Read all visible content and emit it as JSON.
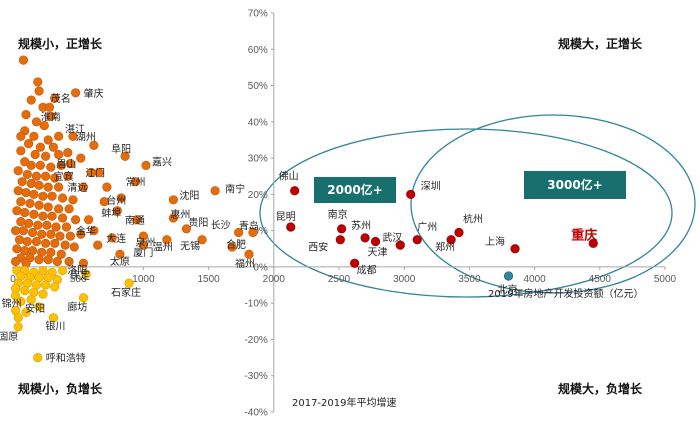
{
  "chart_data": {
    "type": "scatter",
    "xlabel": "2019年房地产开发投资额（亿元）",
    "ylabel": "2017-2019年平均增速",
    "xlim": [
      0,
      5000
    ],
    "ylim": [
      -40,
      70
    ],
    "x_ticks": [
      "0",
      "500",
      "1000",
      "1500",
      "2000",
      "2500",
      "3000",
      "3500",
      "4000",
      "4500",
      "5000"
    ],
    "y_ticks": [
      "-40%",
      "-30%",
      "-20%",
      "-10%",
      "0%",
      "10%",
      "20%",
      "30%",
      "40%",
      "50%",
      "60%",
      "70%"
    ],
    "quadrants": {
      "top_left": "规模小，正增长",
      "top_right": "规模大，正增长",
      "bottom_left": "规模小，负增长",
      "bottom_right": "规模大，负增长"
    },
    "callouts": [
      "2000亿+",
      "3000亿+"
    ],
    "colors": {
      "positive_large": "#c00000",
      "positive_small": "#e46c0a",
      "negative_small": "#ffc000",
      "negative_large": "#31859c",
      "ellipse": "#31859c",
      "callout_box": "#17706e",
      "highlight_label": "#c00000"
    },
    "labeled_points": [
      {
        "name": "重庆",
        "x": 4450,
        "y": 6.5,
        "group": "large_pos",
        "highlight": true
      },
      {
        "name": "上海",
        "x": 3850,
        "y": 5,
        "group": "large_pos"
      },
      {
        "name": "北京",
        "x": 3800,
        "y": -2.5,
        "group": "large_neg"
      },
      {
        "name": "杭州",
        "x": 3420,
        "y": 9.5,
        "group": "large_pos"
      },
      {
        "name": "郑州",
        "x": 3360,
        "y": 7.5,
        "group": "large_pos"
      },
      {
        "name": "广州",
        "x": 3100,
        "y": 7.5,
        "group": "large_pos"
      },
      {
        "name": "深圳",
        "x": 3050,
        "y": 20,
        "group": "large_pos"
      },
      {
        "name": "武汉",
        "x": 2970,
        "y": 6,
        "group": "large_pos"
      },
      {
        "name": "天津",
        "x": 2780,
        "y": 7,
        "group": "large_pos"
      },
      {
        "name": "苏州",
        "x": 2700,
        "y": 8,
        "group": "large_pos"
      },
      {
        "name": "南京",
        "x": 2520,
        "y": 10.5,
        "group": "large_pos"
      },
      {
        "name": "西安",
        "x": 2510,
        "y": 7.5,
        "group": "large_pos"
      },
      {
        "name": "成都",
        "x": 2620,
        "y": 1,
        "group": "large_pos"
      },
      {
        "name": "昆明",
        "x": 2130,
        "y": 11,
        "group": "large_pos"
      },
      {
        "name": "佛山",
        "x": 2160,
        "y": 21,
        "group": "large_pos"
      },
      {
        "name": "南宁",
        "x": 1550,
        "y": 21,
        "group": "small_pos"
      },
      {
        "name": "青岛",
        "x": 1840,
        "y": 9.5,
        "group": "small_pos"
      },
      {
        "name": "长沙",
        "x": 1730,
        "y": 9.5,
        "group": "small_pos"
      },
      {
        "name": "福州",
        "x": 1810,
        "y": 3.5,
        "group": "small_pos"
      },
      {
        "name": "合肥",
        "x": 1680,
        "y": 5.5,
        "group": "small_pos"
      },
      {
        "name": "无锡",
        "x": 1450,
        "y": 7.5,
        "group": "small_pos"
      },
      {
        "name": "贵阳",
        "x": 1330,
        "y": 10.5,
        "group": "small_pos"
      },
      {
        "name": "沈阳",
        "x": 1230,
        "y": 18.5,
        "group": "small_pos"
      },
      {
        "name": "惠州",
        "x": 1230,
        "y": 13.5,
        "group": "small_pos"
      },
      {
        "name": "温州",
        "x": 1180,
        "y": 7.5,
        "group": "small_pos"
      },
      {
        "name": "厦门",
        "x": 1000,
        "y": 6,
        "group": "small_pos"
      },
      {
        "name": "泉州",
        "x": 1000,
        "y": 8.5,
        "group": "small_pos"
      },
      {
        "name": "南通",
        "x": 950,
        "y": 13,
        "group": "small_pos"
      },
      {
        "name": "嘉兴",
        "x": 1020,
        "y": 28,
        "group": "small_pos"
      },
      {
        "name": "常州",
        "x": 940,
        "y": 23.5,
        "group": "small_pos"
      },
      {
        "name": "阜阳",
        "x": 860,
        "y": 30.5,
        "group": "small_pos"
      },
      {
        "name": "台州",
        "x": 830,
        "y": 19,
        "group": "small_pos"
      },
      {
        "name": "蚌埠",
        "x": 800,
        "y": 15.5,
        "group": "small_pos"
      },
      {
        "name": "太原",
        "x": 820,
        "y": 3.5,
        "group": "small_pos"
      },
      {
        "name": "大连",
        "x": 760,
        "y": 8,
        "group": "small_pos"
      },
      {
        "name": "金华",
        "x": 620,
        "y": 10,
        "group": "small_pos"
      },
      {
        "name": "江门",
        "x": 660,
        "y": 26,
        "group": "small_pos"
      },
      {
        "name": "湖州",
        "x": 620,
        "y": 33.5,
        "group": "small_pos"
      },
      {
        "name": "湛江",
        "x": 460,
        "y": 36,
        "group": "small_pos"
      },
      {
        "name": "眉山",
        "x": 440,
        "y": 28.5,
        "group": "small_pos"
      },
      {
        "name": "宜宾",
        "x": 420,
        "y": 25,
        "group": "small_pos"
      },
      {
        "name": "清远",
        "x": 540,
        "y": 22,
        "group": "small_pos"
      },
      {
        "name": "淮南",
        "x": 290,
        "y": 41.5,
        "group": "small_pos"
      },
      {
        "name": "茂名",
        "x": 320,
        "y": 46.5,
        "group": "small_pos"
      },
      {
        "name": "肇庆",
        "x": 480,
        "y": 48,
        "group": "small_pos"
      },
      {
        "name": "洛阳",
        "x": 540,
        "y": 1,
        "group": "small_pos"
      },
      {
        "name": "保定",
        "x": 560,
        "y": -2,
        "group": "small_neg"
      },
      {
        "name": "石家庄",
        "x": 890,
        "y": -4.5,
        "group": "small_neg"
      },
      {
        "name": "廊坊",
        "x": 540,
        "y": -8.5,
        "group": "small_neg"
      },
      {
        "name": "锦州",
        "x": 20,
        "y": -8,
        "group": "small_neg"
      },
      {
        "name": "安阳",
        "x": 200,
        "y": -11,
        "group": "small_neg"
      },
      {
        "name": "银川",
        "x": 310,
        "y": -14,
        "group": "small_neg"
      },
      {
        "name": "固原",
        "x": 40,
        "y": -16.5,
        "group": "small_neg"
      },
      {
        "name": "呼和浩特",
        "x": 190,
        "y": -25,
        "group": "small_neg"
      }
    ],
    "unlabeled_points": [
      {
        "x": 80,
        "y": 57,
        "group": "small_pos"
      },
      {
        "x": 190,
        "y": 51,
        "group": "small_pos"
      },
      {
        "x": 200,
        "y": 48.5,
        "group": "small_pos"
      },
      {
        "x": 140,
        "y": 46,
        "group": "small_pos"
      },
      {
        "x": 230,
        "y": 44,
        "group": "small_pos"
      },
      {
        "x": 280,
        "y": 44,
        "group": "small_pos"
      },
      {
        "x": 100,
        "y": 42,
        "group": "small_pos"
      },
      {
        "x": 180,
        "y": 40,
        "group": "small_pos"
      },
      {
        "x": 240,
        "y": 39,
        "group": "small_pos"
      },
      {
        "x": 90,
        "y": 37.5,
        "group": "small_pos"
      },
      {
        "x": 60,
        "y": 36,
        "group": "small_pos"
      },
      {
        "x": 160,
        "y": 36,
        "group": "small_pos"
      },
      {
        "x": 270,
        "y": 35,
        "group": "small_pos"
      },
      {
        "x": 350,
        "y": 36,
        "group": "small_pos"
      },
      {
        "x": 120,
        "y": 34,
        "group": "small_pos"
      },
      {
        "x": 210,
        "y": 33,
        "group": "small_pos"
      },
      {
        "x": 310,
        "y": 33,
        "group": "small_pos"
      },
      {
        "x": 60,
        "y": 32,
        "group": "small_pos"
      },
      {
        "x": 170,
        "y": 31,
        "group": "small_pos"
      },
      {
        "x": 250,
        "y": 30.5,
        "group": "small_pos"
      },
      {
        "x": 350,
        "y": 31,
        "group": "small_pos"
      },
      {
        "x": 420,
        "y": 31.5,
        "group": "small_pos"
      },
      {
        "x": 90,
        "y": 29,
        "group": "small_pos"
      },
      {
        "x": 140,
        "y": 28,
        "group": "small_pos"
      },
      {
        "x": 210,
        "y": 28,
        "group": "small_pos"
      },
      {
        "x": 290,
        "y": 27.5,
        "group": "small_pos"
      },
      {
        "x": 370,
        "y": 28,
        "group": "small_pos"
      },
      {
        "x": 520,
        "y": 30,
        "group": "small_pos"
      },
      {
        "x": 40,
        "y": 26.5,
        "group": "small_pos"
      },
      {
        "x": 110,
        "y": 25.5,
        "group": "small_pos"
      },
      {
        "x": 180,
        "y": 25,
        "group": "small_pos"
      },
      {
        "x": 250,
        "y": 25,
        "group": "small_pos"
      },
      {
        "x": 320,
        "y": 24.5,
        "group": "small_pos"
      },
      {
        "x": 600,
        "y": 26,
        "group": "small_pos"
      },
      {
        "x": 70,
        "y": 23.5,
        "group": "small_pos"
      },
      {
        "x": 140,
        "y": 23,
        "group": "small_pos"
      },
      {
        "x": 200,
        "y": 22.5,
        "group": "small_pos"
      },
      {
        "x": 270,
        "y": 22,
        "group": "small_pos"
      },
      {
        "x": 350,
        "y": 22,
        "group": "small_pos"
      },
      {
        "x": 720,
        "y": 22,
        "group": "small_pos"
      },
      {
        "x": 40,
        "y": 21,
        "group": "small_pos"
      },
      {
        "x": 100,
        "y": 20.5,
        "group": "small_pos"
      },
      {
        "x": 160,
        "y": 20,
        "group": "small_pos"
      },
      {
        "x": 230,
        "y": 19.5,
        "group": "small_pos"
      },
      {
        "x": 300,
        "y": 19.5,
        "group": "small_pos"
      },
      {
        "x": 380,
        "y": 19,
        "group": "small_pos"
      },
      {
        "x": 460,
        "y": 18.5,
        "group": "small_pos"
      },
      {
        "x": 700,
        "y": 18,
        "group": "small_pos"
      },
      {
        "x": 60,
        "y": 18,
        "group": "small_pos"
      },
      {
        "x": 130,
        "y": 17.5,
        "group": "small_pos"
      },
      {
        "x": 200,
        "y": 17,
        "group": "small_pos"
      },
      {
        "x": 270,
        "y": 16.5,
        "group": "small_pos"
      },
      {
        "x": 350,
        "y": 16,
        "group": "small_pos"
      },
      {
        "x": 430,
        "y": 16,
        "group": "small_pos"
      },
      {
        "x": 30,
        "y": 15.5,
        "group": "small_pos"
      },
      {
        "x": 90,
        "y": 15,
        "group": "small_pos"
      },
      {
        "x": 160,
        "y": 14.5,
        "group": "small_pos"
      },
      {
        "x": 230,
        "y": 14,
        "group": "small_pos"
      },
      {
        "x": 300,
        "y": 14,
        "group": "small_pos"
      },
      {
        "x": 380,
        "y": 13.5,
        "group": "small_pos"
      },
      {
        "x": 480,
        "y": 13,
        "group": "small_pos"
      },
      {
        "x": 580,
        "y": 13,
        "group": "small_pos"
      },
      {
        "x": 60,
        "y": 12.5,
        "group": "small_pos"
      },
      {
        "x": 120,
        "y": 12,
        "group": "small_pos"
      },
      {
        "x": 190,
        "y": 11.5,
        "group": "small_pos"
      },
      {
        "x": 260,
        "y": 11.5,
        "group": "small_pos"
      },
      {
        "x": 330,
        "y": 11,
        "group": "small_pos"
      },
      {
        "x": 410,
        "y": 11,
        "group": "small_pos"
      },
      {
        "x": 20,
        "y": 10,
        "group": "small_pos"
      },
      {
        "x": 80,
        "y": 10,
        "group": "small_pos"
      },
      {
        "x": 150,
        "y": 9.5,
        "group": "small_pos"
      },
      {
        "x": 220,
        "y": 9,
        "group": "small_pos"
      },
      {
        "x": 290,
        "y": 9,
        "group": "small_pos"
      },
      {
        "x": 360,
        "y": 8.5,
        "group": "small_pos"
      },
      {
        "x": 440,
        "y": 8.5,
        "group": "small_pos"
      },
      {
        "x": 520,
        "y": 9,
        "group": "small_pos"
      },
      {
        "x": 50,
        "y": 7.5,
        "group": "small_pos"
      },
      {
        "x": 110,
        "y": 7,
        "group": "small_pos"
      },
      {
        "x": 180,
        "y": 7,
        "group": "small_pos"
      },
      {
        "x": 250,
        "y": 6.5,
        "group": "small_pos"
      },
      {
        "x": 320,
        "y": 6.5,
        "group": "small_pos"
      },
      {
        "x": 400,
        "y": 6,
        "group": "small_pos"
      },
      {
        "x": 470,
        "y": 5.5,
        "group": "small_pos"
      },
      {
        "x": 650,
        "y": 6,
        "group": "small_pos"
      },
      {
        "x": 30,
        "y": 5,
        "group": "small_pos"
      },
      {
        "x": 90,
        "y": 4.5,
        "group": "small_pos"
      },
      {
        "x": 150,
        "y": 4.5,
        "group": "small_pos"
      },
      {
        "x": 220,
        "y": 4,
        "group": "small_pos"
      },
      {
        "x": 290,
        "y": 4,
        "group": "small_pos"
      },
      {
        "x": 370,
        "y": 3.5,
        "group": "small_pos"
      },
      {
        "x": 60,
        "y": 2.5,
        "group": "small_pos"
      },
      {
        "x": 130,
        "y": 2.5,
        "group": "small_pos"
      },
      {
        "x": 200,
        "y": 2,
        "group": "small_pos"
      },
      {
        "x": 270,
        "y": 2,
        "group": "small_pos"
      },
      {
        "x": 340,
        "y": 1.5,
        "group": "small_pos"
      },
      {
        "x": 430,
        "y": 1.5,
        "group": "small_pos"
      },
      {
        "x": 20,
        "y": 1.5,
        "group": "small_pos"
      },
      {
        "x": 100,
        "y": 1,
        "group": "small_pos"
      },
      {
        "x": 30,
        "y": -1,
        "group": "small_neg"
      },
      {
        "x": 90,
        "y": -1,
        "group": "small_neg"
      },
      {
        "x": 160,
        "y": -1.5,
        "group": "small_neg"
      },
      {
        "x": 230,
        "y": -1,
        "group": "small_neg"
      },
      {
        "x": 300,
        "y": -1.5,
        "group": "small_neg"
      },
      {
        "x": 380,
        "y": -1,
        "group": "small_neg"
      },
      {
        "x": 60,
        "y": -2.5,
        "group": "small_neg"
      },
      {
        "x": 130,
        "y": -3,
        "group": "small_neg"
      },
      {
        "x": 200,
        "y": -3,
        "group": "small_neg"
      },
      {
        "x": 270,
        "y": -3,
        "group": "small_neg"
      },
      {
        "x": 340,
        "y": -3.5,
        "group": "small_neg"
      },
      {
        "x": 40,
        "y": -4.5,
        "group": "small_neg"
      },
      {
        "x": 110,
        "y": -4.5,
        "group": "small_neg"
      },
      {
        "x": 180,
        "y": -5,
        "group": "small_neg"
      },
      {
        "x": 250,
        "y": -5,
        "group": "small_neg"
      },
      {
        "x": 320,
        "y": -5.5,
        "group": "small_neg"
      },
      {
        "x": 20,
        "y": -6,
        "group": "small_neg"
      },
      {
        "x": 90,
        "y": -6.5,
        "group": "small_neg"
      },
      {
        "x": 160,
        "y": -7,
        "group": "small_neg"
      },
      {
        "x": 230,
        "y": -7.5,
        "group": "small_neg"
      },
      {
        "x": 60,
        "y": -9.5,
        "group": "small_neg"
      },
      {
        "x": 140,
        "y": -9,
        "group": "small_neg"
      },
      {
        "x": 20,
        "y": -12,
        "group": "small_neg"
      },
      {
        "x": 100,
        "y": -12.5,
        "group": "small_neg"
      },
      {
        "x": 40,
        "y": -14,
        "group": "small_neg"
      }
    ]
  }
}
